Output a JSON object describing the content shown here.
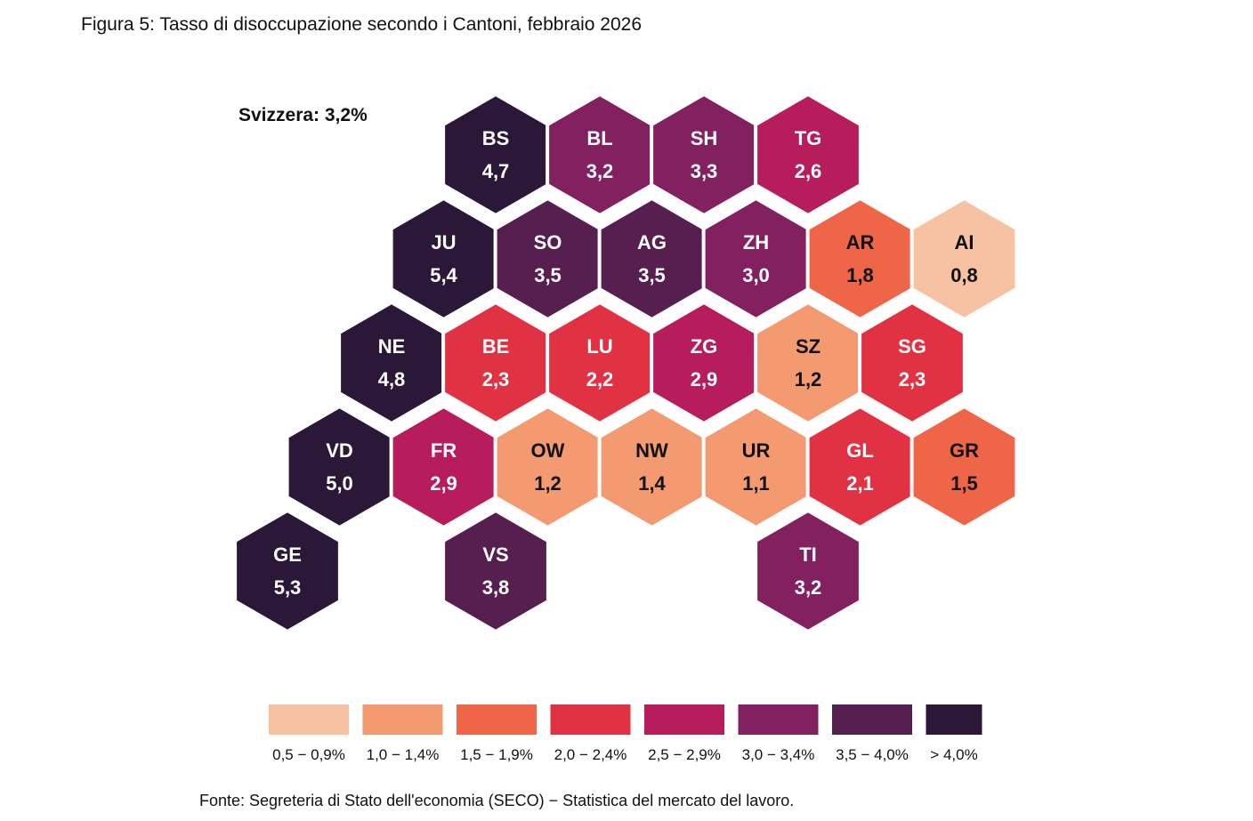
{
  "figure": {
    "title": "Figura 5:  Tasso di disoccupazione secondo i Cantoni, febbraio 2026",
    "source": "Fonte: Segreteria di Stato dell'economia (SECO) − Statistica del mercato del lavoro."
  },
  "chart_data": {
    "type": "hex-tile-map",
    "title": "Tasso di disoccupazione secondo i Cantoni, febbraio 2026",
    "national": {
      "label": "Svizzera: 3,2%",
      "value": 3.2
    },
    "unit": "%",
    "cantons": [
      {
        "code": "BS",
        "label": "4,7",
        "value": 4.7,
        "row": 0,
        "col": 4
      },
      {
        "code": "BL",
        "label": "3,2",
        "value": 3.2,
        "row": 0,
        "col": 6
      },
      {
        "code": "SH",
        "label": "3,3",
        "value": 3.3,
        "row": 0,
        "col": 8
      },
      {
        "code": "TG",
        "label": "2,6",
        "value": 2.6,
        "row": 0,
        "col": 10
      },
      {
        "code": "JU",
        "label": "5,4",
        "value": 5.4,
        "row": 1,
        "col": 3
      },
      {
        "code": "SO",
        "label": "3,5",
        "value": 3.5,
        "row": 1,
        "col": 5
      },
      {
        "code": "AG",
        "label": "3,5",
        "value": 3.5,
        "row": 1,
        "col": 7
      },
      {
        "code": "ZH",
        "label": "3,0",
        "value": 3.0,
        "row": 1,
        "col": 9
      },
      {
        "code": "AR",
        "label": "1,8",
        "value": 1.8,
        "row": 1,
        "col": 11
      },
      {
        "code": "AI",
        "label": "0,8",
        "value": 0.8,
        "row": 1,
        "col": 13
      },
      {
        "code": "NE",
        "label": "4,8",
        "value": 4.8,
        "row": 2,
        "col": 2
      },
      {
        "code": "BE",
        "label": "2,3",
        "value": 2.3,
        "row": 2,
        "col": 4
      },
      {
        "code": "LU",
        "label": "2,2",
        "value": 2.2,
        "row": 2,
        "col": 6
      },
      {
        "code": "ZG",
        "label": "2,9",
        "value": 2.9,
        "row": 2,
        "col": 8
      },
      {
        "code": "SZ",
        "label": "1,2",
        "value": 1.2,
        "row": 2,
        "col": 10
      },
      {
        "code": "SG",
        "label": "2,3",
        "value": 2.3,
        "row": 2,
        "col": 12
      },
      {
        "code": "VD",
        "label": "5,0",
        "value": 5.0,
        "row": 3,
        "col": 1
      },
      {
        "code": "FR",
        "label": "2,9",
        "value": 2.9,
        "row": 3,
        "col": 3
      },
      {
        "code": "OW",
        "label": "1,2",
        "value": 1.2,
        "row": 3,
        "col": 5
      },
      {
        "code": "NW",
        "label": "1,4",
        "value": 1.4,
        "row": 3,
        "col": 7
      },
      {
        "code": "UR",
        "label": "1,1",
        "value": 1.1,
        "row": 3,
        "col": 9
      },
      {
        "code": "GL",
        "label": "2,1",
        "value": 2.1,
        "row": 3,
        "col": 11
      },
      {
        "code": "GR",
        "label": "1,5",
        "value": 1.5,
        "row": 3,
        "col": 13
      },
      {
        "code": "GE",
        "label": "5,3",
        "value": 5.3,
        "row": 4,
        "col": 0
      },
      {
        "code": "VS",
        "label": "3,8",
        "value": 3.8,
        "row": 4,
        "col": 4
      },
      {
        "code": "TI",
        "label": "3,2",
        "value": 3.2,
        "row": 4,
        "col": 10
      }
    ],
    "legend": [
      {
        "label": "0,5 − 0,9%",
        "min": 0.5,
        "max": 0.9,
        "color": "#F7C2A1",
        "text_color": "#111111"
      },
      {
        "label": "1,0 − 1,4%",
        "min": 1.0,
        "max": 1.4,
        "color": "#F39A70",
        "text_color": "#111111"
      },
      {
        "label": "1,5 − 1,9%",
        "min": 1.5,
        "max": 1.9,
        "color": "#EE6548",
        "text_color": "#111111"
      },
      {
        "label": "2,0 − 2,4%",
        "min": 2.0,
        "max": 2.4,
        "color": "#E13244",
        "text_color": "#ffffff"
      },
      {
        "label": "2,5 − 2,9%",
        "min": 2.5,
        "max": 2.9,
        "color": "#B71C5C",
        "text_color": "#ffffff"
      },
      {
        "label": "3,0 − 3,4%",
        "min": 3.0,
        "max": 3.4,
        "color": "#83205F",
        "text_color": "#ffffff"
      },
      {
        "label": "3,5 − 4,0%",
        "min": 3.5,
        "max": 4.0,
        "color": "#571E50",
        "text_color": "#ffffff"
      },
      {
        "label": "> 4,0%",
        "min": 4.0,
        "max": null,
        "color": "#2B1838",
        "text_color": "#ffffff"
      }
    ]
  }
}
